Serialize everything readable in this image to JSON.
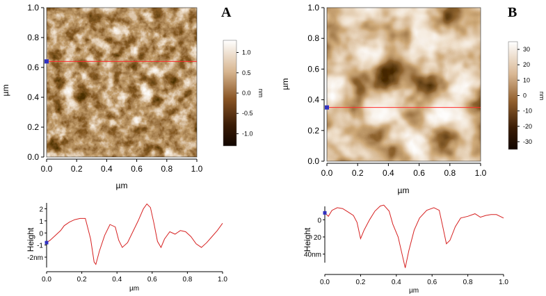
{
  "panels": [
    {
      "label": "A",
      "map": {
        "xlabel": "µm",
        "ylabel": "µm",
        "xticks": [
          "0.0",
          "0.2",
          "0.4",
          "0.6",
          "0.8",
          "1.0"
        ],
        "yticks": [
          "0.0",
          "0.2",
          "0.4",
          "0.6",
          "0.8",
          "1.0"
        ],
        "scan_line_y": 0.64,
        "colorbar": {
          "unit": "nm",
          "ticks": [
            "1.0",
            "0.5",
            "0.0",
            "-0.5",
            "-1.0"
          ],
          "range": [
            -1.3,
            1.3
          ]
        }
      },
      "profile": {
        "xlabel": "µm",
        "ylabel": "Height",
        "xticks": [
          "0.0",
          "0.2",
          "0.4",
          "0.6",
          "0.8",
          "1.0"
        ],
        "yticks": [
          "2",
          "1",
          "0",
          "-1",
          "-2nm"
        ]
      }
    },
    {
      "label": "B",
      "map": {
        "xlabel": "µm",
        "ylabel": "µm",
        "xticks": [
          "0.0",
          "0.2",
          "0.4",
          "0.6",
          "0.8",
          "1.0"
        ],
        "yticks": [
          "0.0",
          "0.2",
          "0.4",
          "0.6",
          "0.8",
          "1.0"
        ],
        "scan_line_y": 0.35,
        "colorbar": {
          "unit": "nm",
          "ticks": [
            "30",
            "20",
            "10",
            "0",
            "-10",
            "-20",
            "-30"
          ],
          "range": [
            -35,
            35
          ]
        }
      },
      "profile": {
        "xlabel": "µm",
        "ylabel": "Height",
        "xticks": [
          "0.0",
          "0.2",
          "0.4",
          "0.6",
          "0.8",
          "1.0"
        ],
        "yticks": [
          "0",
          "20",
          "40nm"
        ]
      }
    }
  ],
  "colors": {
    "scan_line": "#ff2a2a",
    "profile_line": "#d62020",
    "marker": "#3030c0",
    "afm_dark": "#1a0c03",
    "afm_mid": "#8a5626",
    "afm_light": "#ffffff"
  },
  "chart_data": [
    {
      "type": "line",
      "series": [
        {
          "x": [
            0.0,
            0.02,
            0.05,
            0.08,
            0.1,
            0.13,
            0.16,
            0.19,
            0.22,
            0.25,
            0.27,
            0.28,
            0.3,
            0.33,
            0.36,
            0.39,
            0.41,
            0.43,
            0.46,
            0.49,
            0.52,
            0.55,
            0.57,
            0.59,
            0.61,
            0.63,
            0.65,
            0.67,
            0.7,
            0.73,
            0.76,
            0.79,
            0.82,
            0.85,
            0.88,
            0.91,
            0.94,
            0.97,
            1.0
          ],
          "y": [
            -0.8,
            -0.6,
            -0.2,
            0.2,
            0.6,
            0.9,
            1.1,
            1.2,
            1.2,
            -0.5,
            -2.4,
            -2.6,
            -1.5,
            -0.2,
            0.7,
            0.5,
            -0.6,
            -1.2,
            -0.8,
            0.1,
            1.0,
            2.0,
            2.4,
            2.1,
            0.8,
            -0.7,
            -1.2,
            -0.5,
            0.1,
            -0.1,
            0.2,
            0.1,
            -0.3,
            -0.9,
            -1.2,
            -0.8,
            -0.3,
            0.2,
            0.8
          ]
        }
      ],
      "xlabel": "µm",
      "ylabel": "Height",
      "xlim": [
        0,
        1
      ],
      "ylim": [
        -2.8,
        2.6
      ]
    },
    {
      "type": "line",
      "series": [
        {
          "x": [
            0.0,
            0.02,
            0.04,
            0.07,
            0.1,
            0.13,
            0.16,
            0.18,
            0.2,
            0.22,
            0.25,
            0.28,
            0.31,
            0.33,
            0.36,
            0.38,
            0.41,
            0.43,
            0.45,
            0.47,
            0.5,
            0.53,
            0.57,
            0.61,
            0.64,
            0.66,
            0.68,
            0.7,
            0.73,
            0.76,
            0.8,
            0.84,
            0.87,
            0.9,
            0.93,
            0.96,
            1.0
          ],
          "y": [
            8,
            4,
            11,
            14,
            13,
            9,
            5,
            -3,
            -22,
            -12,
            0,
            10,
            16,
            17,
            10,
            -5,
            -20,
            -38,
            -56,
            -36,
            -12,
            2,
            11,
            14,
            11,
            -8,
            -28,
            -24,
            -8,
            2,
            4,
            7,
            3,
            5,
            6,
            6,
            2
          ]
        }
      ],
      "xlabel": "µm",
      "ylabel": "Height",
      "xlim": [
        0,
        1
      ],
      "ylim": [
        -58,
        18
      ]
    }
  ]
}
